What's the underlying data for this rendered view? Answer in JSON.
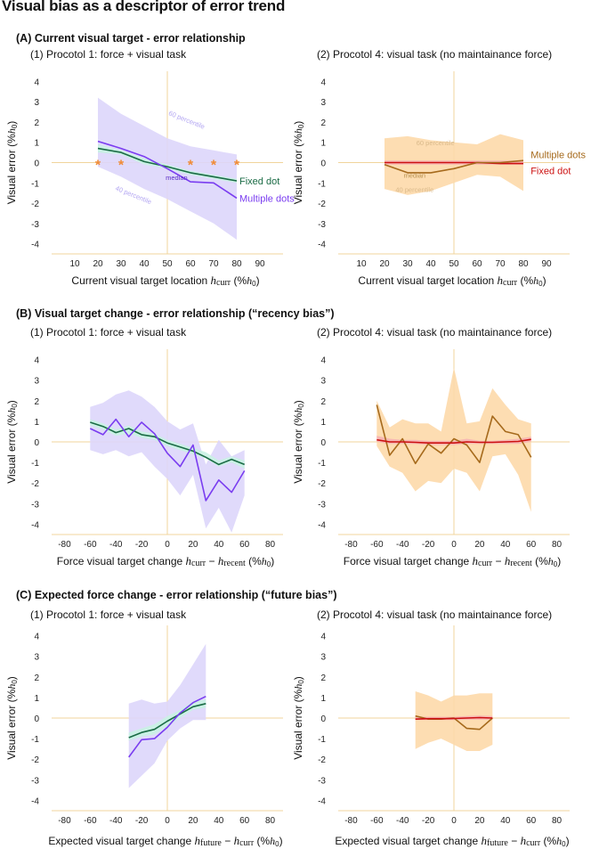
{
  "main_title": "Visual bias as a descriptor of error trend",
  "sections": [
    {
      "title": "(A) Current visual target - error relationship"
    },
    {
      "title": "(B) Visual target change - error relationship (“recency bias”)"
    },
    {
      "title": "(C) Expected force change - error relationship (“future bias”)"
    }
  ],
  "chart_data": [
    {
      "type": "line",
      "title": "(1) Procotol 1: force + visual task",
      "xlabel": "Current visual target location ",
      "xlabel_sym": "h",
      "xlabel_sub": "curr",
      "xlabel_unit": " (%",
      "xlabel_unit_sym": "h",
      "xlabel_unit_sub": "0",
      "xlabel_unit_end": ")",
      "ylabel": "Visual error (%",
      "ylabel_sym": "h",
      "ylabel_sub": "0",
      "ylabel_end": ")",
      "xlim": [
        0,
        100
      ],
      "ylim": [
        -4.5,
        4.5
      ],
      "xticks": [
        10,
        20,
        30,
        40,
        50,
        60,
        70,
        80,
        90
      ],
      "yticks": [
        -4,
        -3,
        -2,
        -1,
        0,
        1,
        2,
        3,
        4
      ],
      "zero_x": 50,
      "axis_color": "#f0d49c",
      "band_multiple": {
        "x": [
          20,
          30,
          40,
          50,
          60,
          70,
          80
        ],
        "lo": [
          -0.2,
          -0.7,
          -1.3,
          -1.8,
          -2.4,
          -3.0,
          -3.8
        ],
        "hi": [
          3.2,
          2.4,
          1.8,
          1.2,
          0.8,
          0.6,
          0.4
        ],
        "color": "#ddd6fb"
      },
      "band_fixed": {
        "x": [
          20,
          30,
          40,
          50,
          60,
          70,
          80
        ],
        "lo": [
          0.5,
          0.4,
          -0.1,
          -0.3,
          -0.6,
          -0.8,
          -1.0
        ],
        "hi": [
          0.9,
          0.6,
          0.2,
          -0.1,
          -0.4,
          -0.6,
          -0.8
        ],
        "color": "#c9f2e3"
      },
      "series": [
        {
          "name": "Fixed dot",
          "x": [
            20,
            30,
            40,
            50,
            60,
            70,
            80
          ],
          "y": [
            0.7,
            0.5,
            0.05,
            -0.2,
            -0.5,
            -0.7,
            -0.9
          ],
          "color": "#1a6b45"
        },
        {
          "name": "Multiple dots",
          "x": [
            20,
            30,
            40,
            50,
            60,
            70,
            80
          ],
          "y": [
            1.05,
            0.7,
            0.3,
            -0.3,
            -0.95,
            -1.0,
            -1.75
          ],
          "color": "#7a3df0"
        }
      ],
      "series_label_pos": [
        [
          80,
          -0.9
        ],
        [
          80,
          -1.75
        ]
      ],
      "series_label_anchor": [
        "start",
        "start"
      ],
      "annotations": [
        {
          "text": "60 percentile",
          "x": 58,
          "y": 2.0,
          "rotate": 22,
          "color": "#b3a6f2"
        },
        {
          "text": "median",
          "x": 54,
          "y": -0.85,
          "rotate": 0,
          "color": "#5a2cc8"
        },
        {
          "text": "40 percentile",
          "x": 35,
          "y": -1.7,
          "rotate": 22,
          "color": "#b3a6f2"
        }
      ],
      "stars": {
        "x": [
          20,
          30,
          60,
          70,
          80
        ],
        "y": [
          0,
          0,
          0,
          0,
          0
        ],
        "symbol": "*",
        "color": "#f08a33"
      }
    },
    {
      "type": "line",
      "title": "(2) Procotol 4: visual task (no maintainance force)",
      "xlabel": "Current visual target location ",
      "xlabel_sym": "h",
      "xlabel_sub": "curr",
      "xlabel_unit": " (%",
      "xlabel_unit_sym": "h",
      "xlabel_unit_sub": "0",
      "xlabel_unit_end": ")",
      "ylabel": "Visual error (%",
      "ylabel_sym": "h",
      "ylabel_sub": "0",
      "ylabel_end": ")",
      "xlim": [
        0,
        100
      ],
      "ylim": [
        -4.5,
        4.5
      ],
      "xticks": [
        10,
        20,
        30,
        40,
        50,
        60,
        70,
        80,
        90
      ],
      "yticks": [
        -4,
        -3,
        -2,
        -1,
        0,
        1,
        2,
        3,
        4
      ],
      "zero_x": 50,
      "axis_color": "#f0d49c",
      "band_multiple": {
        "x": [
          20,
          30,
          40,
          50,
          60,
          70,
          80
        ],
        "lo": [
          -1.3,
          -1.6,
          -1.4,
          -1.0,
          -0.6,
          -0.7,
          -1.4
        ],
        "hi": [
          1.2,
          1.3,
          1.1,
          1.0,
          0.9,
          1.4,
          1.1
        ],
        "color": "#fdd9aa"
      },
      "band_fixed": {
        "x": [
          20,
          30,
          40,
          50,
          60,
          70,
          80
        ],
        "lo": [
          -0.1,
          -0.1,
          -0.1,
          -0.1,
          -0.1,
          -0.1,
          -0.1
        ],
        "hi": [
          0.1,
          0.1,
          0.1,
          0.1,
          0.1,
          0.1,
          0.1
        ],
        "color": "#f6b3b3"
      },
      "series": [
        {
          "name": "Fixed dot",
          "x": [
            20,
            30,
            40,
            50,
            60,
            70,
            80
          ],
          "y": [
            0,
            0,
            0,
            0,
            0,
            -0.05,
            -0.05
          ],
          "color": "#cc1111"
        },
        {
          "name": "Multiple dots",
          "x": [
            20,
            30,
            40,
            50,
            60,
            70,
            80
          ],
          "y": [
            -0.1,
            -0.5,
            -0.5,
            -0.3,
            0,
            0,
            0.1
          ],
          "color": "#a66a1c"
        }
      ],
      "series_label_pos": [
        [
          82,
          -0.4
        ],
        [
          82,
          0.4
        ]
      ],
      "series_label_anchor": [
        "start",
        "start"
      ],
      "annotations": [
        {
          "text": "60 percentile",
          "x": 42,
          "y": 0.85,
          "rotate": 0,
          "color": "#d9b98a"
        },
        {
          "text": "median",
          "x": 33,
          "y": -0.75,
          "rotate": 0,
          "color": "#b8904e"
        },
        {
          "text": "40 percentile",
          "x": 33,
          "y": -1.45,
          "rotate": 0,
          "color": "#d9b98a"
        }
      ]
    },
    {
      "type": "line",
      "title": "(1) Procotol 1: force + visual task",
      "xlabel": "Force visual target change ",
      "xlabel_sym": "h",
      "xlabel_sub": "curr",
      "xlabel_mid": " − ",
      "xlabel_sym2": "h",
      "xlabel_sub2": "recent",
      "xlabel_unit": "  (%",
      "xlabel_unit_sym": "h",
      "xlabel_unit_sub": "0",
      "xlabel_unit_end": ")",
      "ylabel": "Visual error (%",
      "ylabel_sym": "h",
      "ylabel_sub": "0",
      "ylabel_end": ")",
      "xlim": [
        -90,
        90
      ],
      "ylim": [
        -4.5,
        4.5
      ],
      "xticks": [
        -80,
        -60,
        -40,
        -20,
        0,
        20,
        40,
        60,
        80
      ],
      "yticks": [
        -4,
        -3,
        -2,
        -1,
        0,
        1,
        2,
        3,
        4
      ],
      "zero_x": 0,
      "axis_color": "#f0d49c",
      "band_multiple": {
        "x": [
          -60,
          -50,
          -40,
          -30,
          -20,
          -10,
          0,
          10,
          20,
          30,
          40,
          50,
          60
        ],
        "lo": [
          -0.4,
          -0.6,
          -0.4,
          -0.7,
          -0.5,
          -1.2,
          -1.8,
          -2.6,
          -1.6,
          -4.2,
          -3.2,
          -4.4,
          -2.6
        ],
        "hi": [
          1.7,
          1.9,
          2.3,
          2.5,
          2.2,
          1.7,
          1.0,
          0.6,
          0.9,
          -1.1,
          0.1,
          -0.7,
          -0.4
        ],
        "color": "#ddd6fb"
      },
      "band_fixed": {
        "x": [
          -60,
          -50,
          -40,
          -30,
          -20,
          -10,
          0,
          10,
          20,
          30,
          40,
          50,
          60
        ],
        "lo": [
          0.8,
          0.6,
          0.3,
          0.4,
          0.2,
          0.1,
          -0.2,
          -0.4,
          -0.6,
          -0.8,
          -1.2,
          -1.0,
          -1.3
        ],
        "hi": [
          1.1,
          0.9,
          0.6,
          0.8,
          0.5,
          0.4,
          0.1,
          -0.1,
          -0.3,
          -0.5,
          -0.9,
          -0.7,
          -0.9
        ],
        "color": "#c9f2e3"
      },
      "series": [
        {
          "name": "",
          "x": [
            -60,
            -50,
            -40,
            -30,
            -20,
            -10,
            0,
            10,
            20,
            30,
            40,
            50,
            60
          ],
          "y": [
            0.95,
            0.75,
            0.45,
            0.65,
            0.35,
            0.25,
            -0.05,
            -0.25,
            -0.45,
            -0.75,
            -1.1,
            -0.85,
            -1.1
          ],
          "color": "#1a6b45"
        },
        {
          "name": "",
          "x": [
            -60,
            -50,
            -40,
            -30,
            -20,
            -10,
            0,
            10,
            20,
            30,
            40,
            50,
            60
          ],
          "y": [
            0.65,
            0.35,
            1.1,
            0.25,
            0.95,
            0.4,
            -0.55,
            -1.2,
            -0.15,
            -2.85,
            -1.85,
            -2.45,
            -1.4
          ],
          "color": "#7a3df0"
        }
      ]
    },
    {
      "type": "line",
      "title": "(2) Procotol 4: visual task (no maintainance force)",
      "xlabel": "Force visual target change ",
      "xlabel_sym": "h",
      "xlabel_sub": "curr",
      "xlabel_mid": " − ",
      "xlabel_sym2": "h",
      "xlabel_sub2": "recent",
      "xlabel_unit": "  (%",
      "xlabel_unit_sym": "h",
      "xlabel_unit_sub": "0",
      "xlabel_unit_end": ")",
      "ylabel": "Visual error (%",
      "ylabel_sym": "h",
      "ylabel_sub": "0",
      "ylabel_end": ")",
      "xlim": [
        -90,
        90
      ],
      "ylim": [
        -4.5,
        4.5
      ],
      "xticks": [
        -80,
        -60,
        -40,
        -20,
        0,
        20,
        40,
        60,
        80
      ],
      "yticks": [
        -4,
        -3,
        -2,
        -1,
        0,
        1,
        2,
        3,
        4
      ],
      "zero_x": 0,
      "axis_color": "#f0d49c",
      "band_multiple": {
        "x": [
          -60,
          -50,
          -40,
          -30,
          -20,
          -10,
          0,
          10,
          20,
          30,
          40,
          50,
          60
        ],
        "lo": [
          -0.2,
          -1.2,
          -1.5,
          -2.4,
          -1.9,
          -2.0,
          -1.3,
          -1.5,
          -2.4,
          -0.7,
          -0.6,
          -1.6,
          -3.4
        ],
        "hi": [
          2.0,
          0.7,
          1.1,
          0.9,
          0.9,
          0.5,
          3.6,
          0.9,
          1.0,
          2.6,
          1.8,
          1.1,
          0.9
        ],
        "color": "#fdd9aa"
      },
      "band_fixed": {
        "x": [
          -60,
          -50,
          -40,
          -30,
          -20,
          -10,
          0,
          10,
          20,
          30,
          40,
          50,
          60
        ],
        "lo": [
          0.0,
          -0.1,
          -0.1,
          -0.1,
          -0.15,
          -0.15,
          -0.15,
          -0.1,
          -0.1,
          -0.1,
          -0.1,
          -0.1,
          0.0
        ],
        "hi": [
          0.3,
          0.15,
          0.1,
          0.1,
          0.05,
          0.05,
          0.05,
          0.15,
          0.05,
          0.05,
          0.1,
          0.15,
          0.25
        ],
        "color": "#f6b3b3"
      },
      "series": [
        {
          "name": "",
          "x": [
            -60,
            -50,
            -40,
            -30,
            -20,
            -10,
            0,
            10,
            20,
            30,
            40,
            50,
            60
          ],
          "y": [
            1.8,
            -0.65,
            0.15,
            -1.05,
            -0.1,
            -0.55,
            0.15,
            -0.15,
            -1.0,
            1.25,
            0.5,
            0.35,
            -0.75
          ],
          "color": "#a66a1c"
        },
        {
          "name": "",
          "x": [
            -60,
            -50,
            -40,
            -30,
            -20,
            -10,
            0,
            10,
            20,
            30,
            40,
            50,
            60
          ],
          "y": [
            0.1,
            0.0,
            0.0,
            -0.02,
            -0.05,
            -0.05,
            -0.05,
            0.0,
            -0.02,
            -0.02,
            0.0,
            0.02,
            0.12
          ],
          "color": "#cc1111"
        }
      ]
    },
    {
      "type": "line",
      "title": "(1) Procotol 1: force + visual task",
      "xlabel": "Expected visual target change ",
      "xlabel_sym": "h",
      "xlabel_sub": "future",
      "xlabel_mid": " − ",
      "xlabel_sym2": "h",
      "xlabel_sub2": "curr",
      "xlabel_unit": "   (%",
      "xlabel_unit_sym": "h",
      "xlabel_unit_sub": "0",
      "xlabel_unit_end": ")",
      "ylabel": "Visual error (%",
      "ylabel_sym": "h",
      "ylabel_sub": "0",
      "ylabel_end": ")",
      "xlim": [
        -90,
        90
      ],
      "ylim": [
        -4.5,
        4.5
      ],
      "xticks": [
        -80,
        -60,
        -40,
        -20,
        0,
        20,
        40,
        60,
        80
      ],
      "yticks": [
        -4,
        -3,
        -2,
        -1,
        0,
        1,
        2,
        3,
        4
      ],
      "zero_x": 0,
      "axis_color": "#f0d49c",
      "band_multiple": {
        "x": [
          -30,
          -20,
          -10,
          0,
          10,
          20,
          30
        ],
        "lo": [
          -3.4,
          -2.8,
          -2.2,
          -1.1,
          -0.5,
          -0.1,
          -0.1
        ],
        "hi": [
          0.7,
          0.9,
          0.7,
          0.8,
          1.6,
          2.6,
          3.6
        ],
        "color": "#ddd6fb"
      },
      "band_fixed": {
        "x": [
          -30,
          -20,
          -10,
          0,
          10,
          20,
          30
        ],
        "lo": [
          -1.1,
          -0.9,
          -0.8,
          -0.4,
          0.0,
          0.4,
          0.5
        ],
        "hi": [
          -0.7,
          -0.5,
          -0.3,
          0.1,
          0.4,
          0.8,
          0.9
        ],
        "color": "#c9f2e3"
      },
      "series": [
        {
          "name": "",
          "x": [
            -30,
            -20,
            -10,
            0,
            10,
            20,
            30
          ],
          "y": [
            -0.95,
            -0.7,
            -0.55,
            -0.15,
            0.2,
            0.55,
            0.7
          ],
          "color": "#1a6b45"
        },
        {
          "name": "",
          "x": [
            -30,
            -20,
            -10,
            0,
            10,
            20,
            30
          ],
          "y": [
            -1.9,
            -1.05,
            -1.0,
            -0.45,
            0.25,
            0.75,
            1.05
          ],
          "color": "#7a3df0"
        }
      ]
    },
    {
      "type": "line",
      "title": "(2) Procotol 4: visual task (no maintainance force)",
      "xlabel": "Expected visual target change ",
      "xlabel_sym": "h",
      "xlabel_sub": "future",
      "xlabel_mid": " − ",
      "xlabel_sym2": "h",
      "xlabel_sub2": "curr",
      "xlabel_unit": "   (%",
      "xlabel_unit_sym": "h",
      "xlabel_unit_sub": "0",
      "xlabel_unit_end": ")",
      "ylabel": "Visual error (%",
      "ylabel_sym": "h",
      "ylabel_sub": "0",
      "ylabel_end": ")",
      "xlim": [
        -90,
        90
      ],
      "ylim": [
        -4.5,
        4.5
      ],
      "xticks": [
        -80,
        -60,
        -40,
        -20,
        0,
        20,
        40,
        60,
        80
      ],
      "yticks": [
        -4,
        -3,
        -2,
        -1,
        0,
        1,
        2,
        3,
        4
      ],
      "zero_x": 0,
      "axis_color": "#f0d49c",
      "band_multiple": {
        "x": [
          -30,
          -20,
          -10,
          0,
          10,
          20,
          30
        ],
        "lo": [
          -1.5,
          -1.2,
          -1.0,
          -1.3,
          -1.6,
          -1.6,
          -1.3
        ],
        "hi": [
          1.3,
          1.1,
          0.8,
          1.1,
          1.1,
          1.2,
          1.2
        ],
        "color": "#fdd9aa"
      },
      "band_fixed": {
        "x": [
          -30,
          -20,
          -10,
          0,
          10,
          20,
          30
        ],
        "lo": [
          -0.1,
          -0.1,
          -0.1,
          -0.1,
          -0.08,
          -0.08,
          -0.08
        ],
        "hi": [
          0.08,
          0.06,
          0.06,
          0.06,
          0.1,
          0.12,
          0.1
        ],
        "color": "#f6b3b3"
      },
      "series": [
        {
          "name": "",
          "x": [
            -30,
            -20,
            -10,
            0,
            10,
            20,
            30
          ],
          "y": [
            0.1,
            -0.05,
            -0.05,
            0.0,
            -0.5,
            -0.55,
            0.0
          ],
          "color": "#a66a1c"
        },
        {
          "name": "",
          "x": [
            -30,
            -20,
            -10,
            0,
            10,
            20,
            30
          ],
          "y": [
            -0.05,
            -0.03,
            -0.03,
            -0.02,
            0.0,
            0.02,
            0.0
          ],
          "color": "#cc1111"
        }
      ]
    }
  ]
}
